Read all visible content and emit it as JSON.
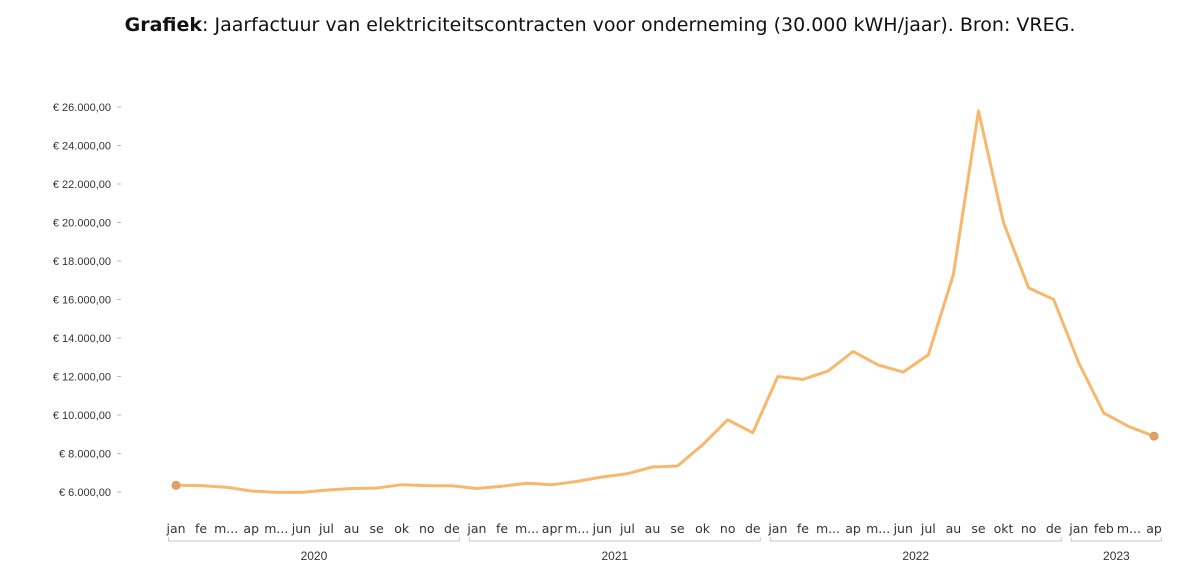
{
  "title": {
    "bold": "Grafiek",
    "rest": ": Jaarfactuur van elektriciteitscontracten voor onderneming (30.000 kWH/jaar). Bron: VREG."
  },
  "colors": {
    "line": "#f7b86e",
    "marker": "#e3a066"
  },
  "chart_data": {
    "type": "line",
    "title": "Grafiek: Jaarfactuur van elektriciteitscontracten voor onderneming (30.000 kWH/jaar). Bron: VREG.",
    "xlabel": "",
    "ylabel": "",
    "ylim": [
      5000,
      26500
    ],
    "y_ticks": [
      6000,
      8000,
      10000,
      12000,
      14000,
      16000,
      18000,
      20000,
      22000,
      24000,
      26000
    ],
    "y_tick_labels": [
      "€ 6.000,00",
      "€ 8.000,00",
      "€ 10.000,00",
      "€ 12.000,00",
      "€ 14.000,00",
      "€ 16.000,00",
      "€ 18.000,00",
      "€ 20.000,00",
      "€ 22.000,00",
      "€ 24.000,00",
      "€ 26.000,00"
    ],
    "x_labels": [
      "jan",
      "fe",
      "m...",
      "ap",
      "m...",
      "jun",
      "jul",
      "au",
      "se",
      "ok",
      "no",
      "de",
      "jan",
      "fe",
      "m...",
      "apr",
      "m...",
      "jun",
      "jul",
      "au",
      "se",
      "ok",
      "no",
      "de",
      "jan",
      "fe",
      "m...",
      "ap",
      "m...",
      "jun",
      "jul",
      "au",
      "se",
      "okt",
      "no",
      "de",
      "jan",
      "feb",
      "m...",
      "ap"
    ],
    "years": [
      {
        "label": "2020",
        "start": 0,
        "end": 11
      },
      {
        "label": "2021",
        "start": 12,
        "end": 23
      },
      {
        "label": "2022",
        "start": 24,
        "end": 35
      },
      {
        "label": "2023",
        "start": 36,
        "end": 39
      }
    ],
    "series": [
      {
        "values": [
          6350,
          6330,
          6250,
          6050,
          5980,
          5980,
          6100,
          6180,
          6200,
          6380,
          6330,
          6320,
          6180,
          6300,
          6450,
          6380,
          6550,
          6780,
          6950,
          7300,
          7350,
          8450,
          9750,
          9080,
          12000,
          11850,
          12280,
          13300,
          12600,
          12230,
          13120,
          17300,
          25800,
          20000,
          16600,
          16000,
          12700,
          10100,
          9400,
          8900
        ],
        "markers": [
          0,
          39
        ]
      }
    ],
    "grid": false
  }
}
